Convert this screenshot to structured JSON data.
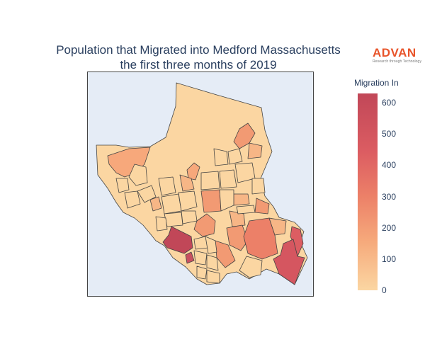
{
  "title_line1": "Population that Migrated into Medford Massachusetts",
  "title_line2": "the first three months of 2019",
  "logo": {
    "word": "ADVAN",
    "tagline": "Research through Technology",
    "color": "#e8542a"
  },
  "legend": {
    "title": "Migration In",
    "ticks": [
      "0",
      "100",
      "200",
      "300",
      "400",
      "500",
      "600"
    ],
    "range": [
      0,
      630
    ],
    "colors": [
      "#fbd6a2",
      "#f6a97b",
      "#ec8068",
      "#dc5d62",
      "#c14758"
    ]
  },
  "map": {
    "background": "#e5ecf6",
    "boundary_color": "#444444"
  }
}
